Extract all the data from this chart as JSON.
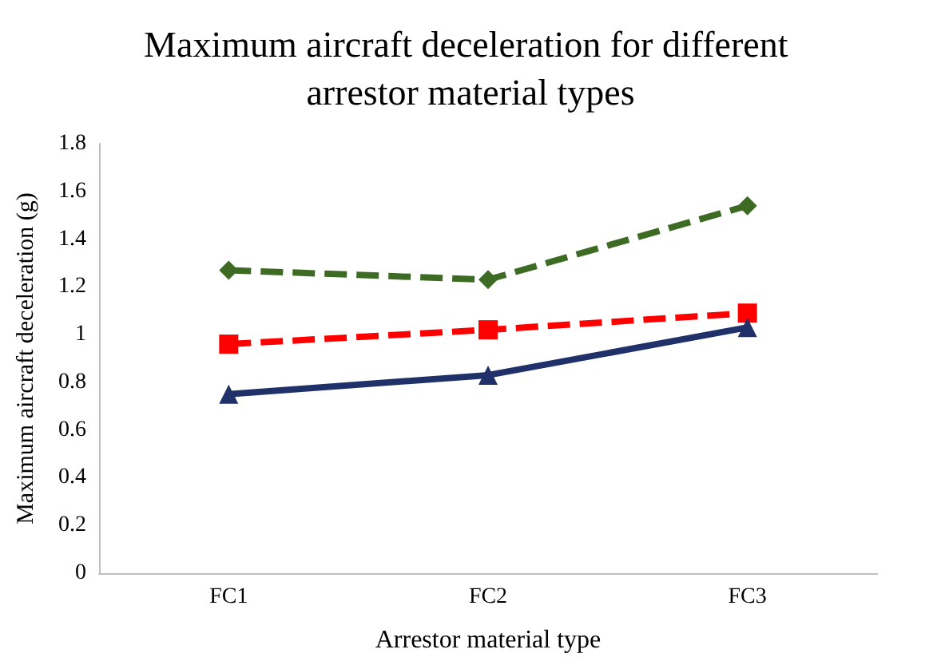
{
  "chart_data": {
    "type": "line",
    "title": "Maximum aircraft deceleration for different arrestor material types",
    "xlabel": "Arrestor material type",
    "ylabel": "Maximum aircraft deceleration (g)",
    "categories": [
      "FC1",
      "FC2",
      "FC3"
    ],
    "series": [
      {
        "color": "#3e6b24",
        "marker": "diamond",
        "line_style": "dashed",
        "values": [
          1.27,
          1.23,
          1.54
        ]
      },
      {
        "color": "#ff0000",
        "marker": "square",
        "line_style": "dashed",
        "values": [
          0.96,
          1.02,
          1.09
        ]
      },
      {
        "color": "#1f3168",
        "marker": "triangle",
        "line_style": "solid",
        "values": [
          0.75,
          0.83,
          1.03
        ]
      }
    ],
    "ylim": [
      0,
      1.8
    ],
    "yticks": [
      0,
      0.2,
      0.4,
      0.6,
      0.8,
      1,
      1.2,
      1.4,
      1.6,
      1.8
    ],
    "grid": false
  }
}
